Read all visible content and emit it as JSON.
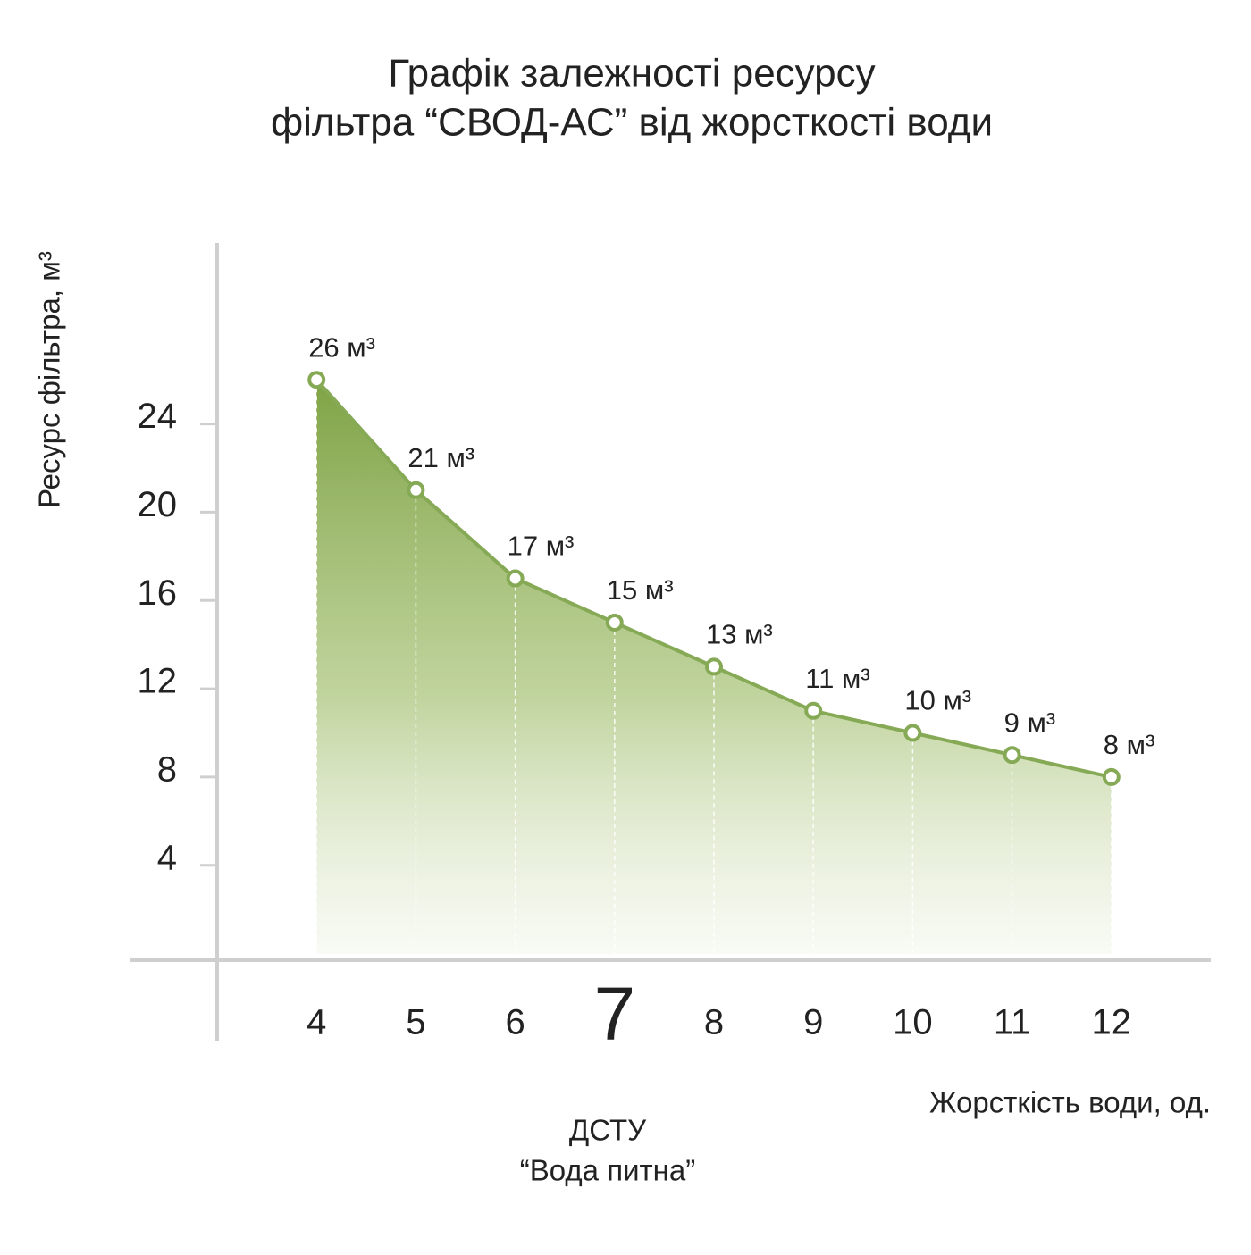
{
  "chart_data": {
    "type": "area",
    "title": [
      "Графік залежності ресурсу",
      "фільтра “СВОД-АС” від жорсткості води"
    ],
    "y_label": "Ресурс фільтра, м³",
    "x_label": "Жорсткість води, од.",
    "annotation": [
      "ДСТУ",
      "“Вода питна”"
    ],
    "x": [
      4,
      5,
      6,
      7,
      8,
      9,
      10,
      11,
      12
    ],
    "values": [
      26,
      21,
      17,
      15,
      13,
      11,
      10,
      9,
      8
    ],
    "value_labels": [
      "26 м³",
      "21 м³",
      "17 м³",
      "15 м³",
      "13 м³",
      "11 м³",
      "10 м³",
      "9 м³",
      "8 м³"
    ],
    "color": "#86a956",
    "xlim": [
      3,
      13
    ],
    "xticks": [
      4,
      5,
      6,
      7,
      8,
      9,
      10,
      11,
      12
    ],
    "emphasized_xtick": 7,
    "ylim": [
      -0.3,
      32.2
    ],
    "yticks": [
      4,
      8,
      12,
      16,
      20,
      24
    ],
    "grid": false
  }
}
